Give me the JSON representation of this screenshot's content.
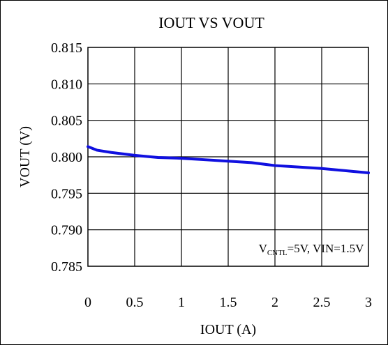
{
  "chart_data": {
    "type": "line",
    "title": "IOUT VS VOUT",
    "xlabel": "IOUT (A)",
    "ylabel": "VOUT (V)",
    "xlim": [
      0,
      3
    ],
    "ylim": [
      0.785,
      0.815
    ],
    "x_ticks": [
      0,
      0.5,
      1,
      1.5,
      2,
      2.5,
      3
    ],
    "x_tick_labels": [
      "0",
      "0.5",
      "1",
      "1.5",
      "2",
      "2.5",
      "3"
    ],
    "y_ticks": [
      0.785,
      0.79,
      0.795,
      0.8,
      0.805,
      0.81,
      0.815
    ],
    "y_tick_labels": [
      "0.785",
      "0.790",
      "0.795",
      "0.800",
      "0.805",
      "0.810",
      "0.815"
    ],
    "grid": true,
    "annotation": {
      "prefix": "V",
      "subscript": "CNTL",
      "suffix": "=5V, VIN=1.5V"
    },
    "series": [
      {
        "color": "#1010e0",
        "x": [
          0,
          0.1,
          0.25,
          0.5,
          0.75,
          1,
          1.25,
          1.5,
          1.75,
          2,
          2.25,
          2.5,
          2.75,
          3
        ],
        "y": [
          0.8014,
          0.8009,
          0.8006,
          0.8002,
          0.7999,
          0.7998,
          0.7996,
          0.7994,
          0.7992,
          0.7988,
          0.7986,
          0.7984,
          0.7981,
          0.7978
        ]
      }
    ]
  }
}
